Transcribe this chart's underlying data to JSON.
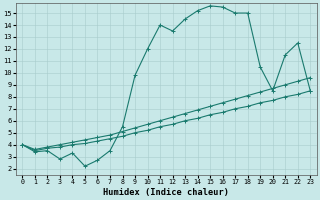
{
  "xlabel": "Humidex (Indice chaleur)",
  "xlim": [
    -0.5,
    23.5
  ],
  "ylim": [
    1.5,
    15.8
  ],
  "xticks": [
    0,
    1,
    2,
    3,
    4,
    5,
    6,
    7,
    8,
    9,
    10,
    11,
    12,
    13,
    14,
    15,
    16,
    17,
    18,
    19,
    20,
    21,
    22,
    23
  ],
  "yticks": [
    2,
    3,
    4,
    5,
    6,
    7,
    8,
    9,
    10,
    11,
    12,
    13,
    14,
    15
  ],
  "bg_color": "#c8e8e8",
  "line_color": "#1a7a6e",
  "grid_color": "#a8cccc",
  "lines": [
    {
      "x": [
        0,
        1,
        2,
        3,
        4,
        5,
        6,
        7,
        8,
        9,
        10,
        11,
        12,
        13,
        14,
        15,
        16,
        17,
        18,
        19,
        20,
        21,
        22,
        23
      ],
      "y": [
        4.0,
        3.5,
        3.7,
        3.8,
        4.0,
        4.1,
        4.3,
        4.5,
        4.7,
        5.0,
        5.2,
        5.5,
        5.7,
        6.0,
        6.2,
        6.5,
        6.7,
        7.0,
        7.2,
        7.5,
        7.7,
        8.0,
        8.2,
        8.5
      ]
    },
    {
      "x": [
        0,
        1,
        2,
        3,
        4,
        5,
        6,
        7,
        8,
        9,
        10,
        11,
        12,
        13,
        14,
        15,
        16,
        17,
        18,
        19,
        20,
        21,
        22,
        23
      ],
      "y": [
        4.0,
        3.6,
        3.8,
        4.0,
        4.2,
        4.4,
        4.6,
        4.8,
        5.1,
        5.4,
        5.7,
        6.0,
        6.3,
        6.6,
        6.9,
        7.2,
        7.5,
        7.8,
        8.1,
        8.4,
        8.7,
        9.0,
        9.3,
        9.6
      ]
    },
    {
      "x": [
        0,
        1,
        2,
        3,
        4,
        5,
        6,
        7,
        8,
        9,
        10,
        11,
        12,
        13,
        14,
        15,
        16,
        17,
        18,
        19,
        20,
        21,
        22,
        23
      ],
      "y": [
        4.0,
        3.4,
        3.5,
        2.8,
        3.3,
        2.2,
        2.7,
        3.5,
        5.5,
        9.8,
        12.0,
        14.0,
        13.5,
        14.5,
        15.2,
        15.6,
        15.5,
        15.0,
        15.0,
        10.5,
        8.5,
        11.5,
        12.5,
        8.5
      ]
    }
  ]
}
